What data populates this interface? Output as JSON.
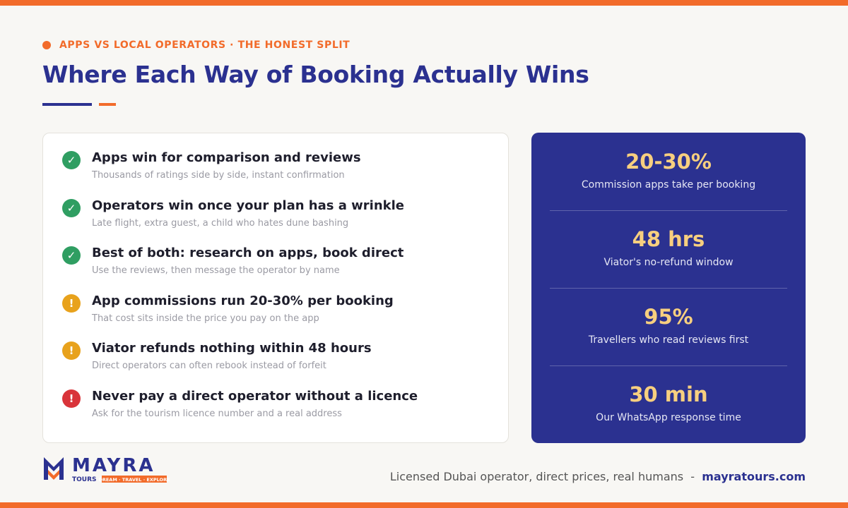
{
  "header": {
    "eyebrow": "APPS VS LOCAL OPERATORS · THE HONEST SPLIT",
    "title": "Where Each Way of Booking Actually Wins"
  },
  "items": [
    {
      "icon": "✓",
      "icon_color": "#2f9e62",
      "title": "Apps win for comparison and reviews",
      "text": "Thousands of ratings side by side, instant confirmation"
    },
    {
      "icon": "✓",
      "icon_color": "#2f9e62",
      "title": "Operators win once your plan has a wrinkle",
      "text": "Late flight, extra guest, a child who hates dune bashing"
    },
    {
      "icon": "✓",
      "icon_color": "#2f9e62",
      "title": "Best of both: research on apps, book direct",
      "text": "Use the reviews, then message the operator by name"
    },
    {
      "icon": "!",
      "icon_color": "#e8a21c",
      "title": "App commissions run 20-30% per booking",
      "text": "That cost sits inside the price you pay on the app"
    },
    {
      "icon": "!",
      "icon_color": "#e8a21c",
      "title": "Viator refunds nothing within 48 hours",
      "text": "Direct operators can often rebook instead of forfeit"
    },
    {
      "icon": "!",
      "icon_color": "#d9343a",
      "title": "Never pay a direct operator without a licence",
      "text": "Ask for the tourism licence number and a real address"
    }
  ],
  "stats": [
    {
      "value": "20-30%",
      "label": "Commission apps take per booking"
    },
    {
      "value": "48 hrs",
      "label": "Viator's no-refund window"
    },
    {
      "value": "95%",
      "label": "Travellers who read reviews first"
    },
    {
      "value": "30 min",
      "label": "Our WhatsApp response time"
    }
  ],
  "footer": {
    "logo_name": "MAYRA",
    "logo_sub": "TOURS",
    "logo_tagline": "DREAM · TRAVEL · EXPLORE",
    "tagline": "Licensed Dubai operator, direct prices, real humans",
    "separator": "-",
    "url": "mayratours.com"
  }
}
